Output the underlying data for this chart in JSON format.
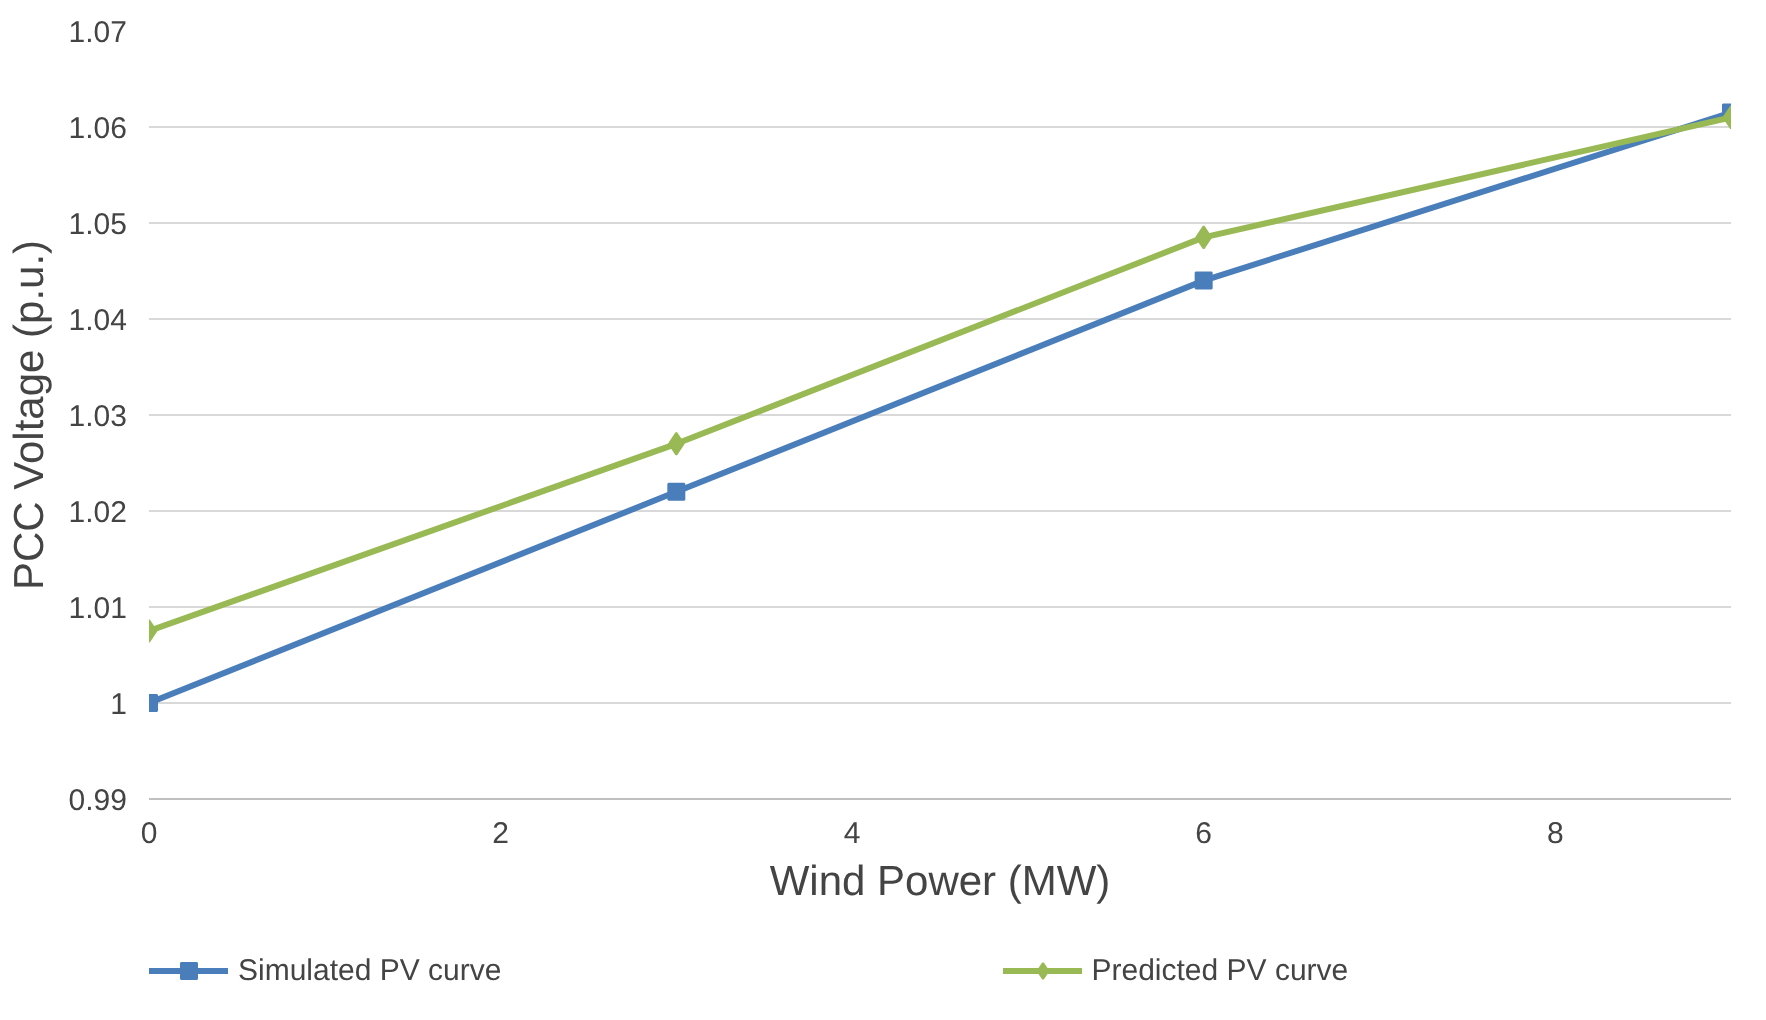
{
  "chart_data": {
    "type": "line",
    "xlabel": "Wind Power (MW)",
    "ylabel": "PCC Voltage (p.u.)",
    "x": [
      0,
      3,
      6,
      9
    ],
    "series": [
      {
        "name": "Simulated PV curve",
        "color": "#4a7ebb",
        "marker": "square",
        "values": [
          1.0,
          1.022,
          1.044,
          1.0615
        ]
      },
      {
        "name": "Predicted PV curve",
        "color": "#98b954",
        "marker": "diamond",
        "values": [
          1.0075,
          1.027,
          1.0485,
          1.061
        ]
      }
    ],
    "xlim": [
      0,
      9
    ],
    "xticks": [
      0,
      2,
      4,
      6,
      8
    ],
    "ylim": [
      0.99,
      1.07
    ],
    "yticks": [
      0.99,
      1,
      1.01,
      1.02,
      1.03,
      1.04,
      1.05,
      1.06,
      1.07
    ],
    "grid": "y",
    "legend": "bottom",
    "line_style": "solid"
  }
}
